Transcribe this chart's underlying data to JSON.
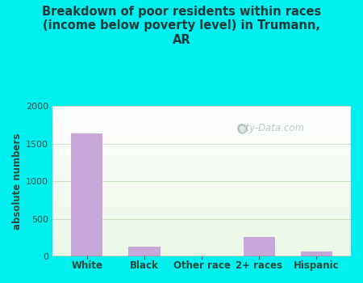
{
  "categories": [
    "White",
    "Black",
    "Other race",
    "2+ races",
    "Hispanic"
  ],
  "values": [
    1630,
    130,
    0,
    260,
    65
  ],
  "bar_color": "#c8a8d8",
  "title": "Breakdown of poor residents within races\n(income below poverty level) in Trumann,\nAR",
  "ylabel": "absolute numbers",
  "ylim": [
    0,
    2000
  ],
  "yticks": [
    0,
    500,
    1000,
    1500,
    2000
  ],
  "bg_outer": "#00f0f0",
  "grid_color": "#c8dfc0",
  "title_color": "#1a3a3a",
  "axis_color": "#2d4a3e",
  "tick_color": "#2d4a3e",
  "watermark": "City-Data.com",
  "figsize": [
    4.5,
    3.5
  ],
  "dpi": 100
}
